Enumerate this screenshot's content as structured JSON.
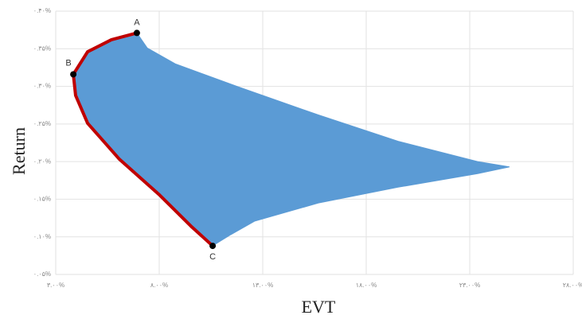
{
  "chart_data": {
    "type": "region",
    "x_label": "EVT",
    "y_label": "Return",
    "xlim": [
      3,
      28
    ],
    "ylim": [
      0.05,
      0.4
    ],
    "xticks": [
      {
        "value": 3,
        "label": "۳.۰۰%"
      },
      {
        "value": 8,
        "label": "۸.۰۰%"
      },
      {
        "value": 13,
        "label": "۱۳.۰۰%"
      },
      {
        "value": 18,
        "label": "۱۸.۰۰%"
      },
      {
        "value": 23,
        "label": "۲۳.۰۰%"
      },
      {
        "value": 28,
        "label": "۲۸.۰۰%"
      }
    ],
    "yticks": [
      {
        "value": 0.05,
        "label": "۰.۰۵%"
      },
      {
        "value": 0.1,
        "label": "۰.۱۰%"
      },
      {
        "value": 0.15,
        "label": "۰.۱۵%"
      },
      {
        "value": 0.2,
        "label": "۰.۲۰%"
      },
      {
        "value": 0.25,
        "label": "۰.۲۵%"
      },
      {
        "value": 0.3,
        "label": "۰.۳۰%"
      },
      {
        "value": 0.35,
        "label": "۰.۳۵%"
      },
      {
        "value": 0.4,
        "label": "۰.۴۰%"
      }
    ],
    "grid": true,
    "region": {
      "color": "#5b9bd5",
      "x": [
        6.92,
        7.42,
        8.77,
        11.85,
        15.69,
        19.54,
        23.38,
        24.92,
        23.38,
        19.54,
        15.69,
        12.62,
        11.46,
        10.58,
        9.54,
        8.0,
        6.08,
        4.54,
        3.96,
        3.85,
        4.54,
        5.69
      ],
      "y": [
        0.371,
        0.351,
        0.33,
        0.299,
        0.262,
        0.227,
        0.2,
        0.193,
        0.184,
        0.166,
        0.145,
        0.121,
        0.103,
        0.088,
        0.114,
        0.156,
        0.203,
        0.251,
        0.288,
        0.316,
        0.346,
        0.362
      ]
    },
    "frontier": {
      "color": "#c00000",
      "x": [
        6.92,
        5.69,
        4.54,
        3.85,
        3.96,
        4.54,
        6.08,
        8.0,
        9.54,
        10.58
      ],
      "y": [
        0.371,
        0.362,
        0.346,
        0.316,
        0.288,
        0.251,
        0.203,
        0.156,
        0.114,
        0.088
      ]
    },
    "points": [
      {
        "label": "A",
        "x": 6.92,
        "y": 0.371
      },
      {
        "label": "B",
        "x": 3.85,
        "y": 0.316
      },
      {
        "label": "C",
        "x": 10.58,
        "y": 0.088
      }
    ]
  }
}
